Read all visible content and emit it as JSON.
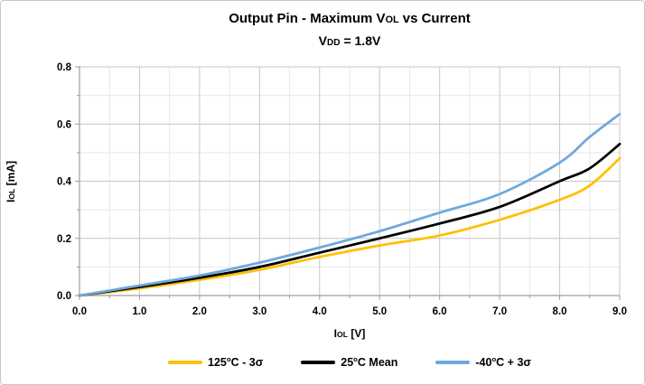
{
  "chart_data": {
    "type": "line",
    "title_text": "Output Pin - Maximum VOL vs Current",
    "title_parts": [
      {
        "t": "Output Pin - Maximum V"
      },
      {
        "t": "OL",
        "style": "small"
      },
      {
        "t": " vs Current"
      }
    ],
    "subtitle_text": "VDD = 1.8V",
    "subtitle_parts": [
      {
        "t": "V"
      },
      {
        "t": "DD",
        "style": "small"
      },
      {
        "t": " = 1.8V"
      }
    ],
    "xlabel_text": "IOL [V]",
    "xlabel_parts": [
      {
        "t": "I"
      },
      {
        "t": "OL",
        "style": "small"
      },
      {
        "t": " [V]"
      }
    ],
    "ylabel_text": "IOL [mA]",
    "ylabel_parts": [
      {
        "t": "I"
      },
      {
        "t": "OL",
        "style": "small"
      },
      {
        "t": " [mA]"
      }
    ],
    "xlim": [
      0,
      9
    ],
    "ylim": [
      0,
      0.8
    ],
    "x_major_ticks": [
      {
        "v": 0,
        "label": "0.0"
      },
      {
        "v": 1,
        "label": "1.0"
      },
      {
        "v": 2,
        "label": "2.0"
      },
      {
        "v": 3,
        "label": "3.0"
      },
      {
        "v": 4,
        "label": "4.0"
      },
      {
        "v": 5,
        "label": "5.0"
      },
      {
        "v": 6,
        "label": "6.0"
      },
      {
        "v": 7,
        "label": "7.0"
      },
      {
        "v": 8,
        "label": "8.0"
      },
      {
        "v": 9,
        "label": "9.0"
      }
    ],
    "y_major_ticks": [
      {
        "v": 0.0,
        "label": "0.0"
      },
      {
        "v": 0.2,
        "label": "0.2"
      },
      {
        "v": 0.4,
        "label": "0.4"
      },
      {
        "v": 0.6,
        "label": "0.6"
      },
      {
        "v": 0.8,
        "label": "0.8"
      }
    ],
    "x_minor_step": 0.5,
    "y_minor_step": 0.1,
    "grid": {
      "major_color": "#c6c6c6",
      "minor_color": "#e8e8e8",
      "axis_color": "#9e9e9e",
      "grid_on": true,
      "legend_position": "bottom"
    },
    "x": [
      0,
      1,
      2,
      3,
      4,
      5,
      6,
      7,
      8,
      8.5,
      9
    ],
    "series": [
      {
        "name": "125°C - 3σ",
        "label_parts": [
          {
            "t": "125"
          },
          {
            "t": "o",
            "style": "sup"
          },
          {
            "t": "C - 3σ"
          }
        ],
        "color": "#FFC000",
        "values": [
          0,
          0.025,
          0.055,
          0.09,
          0.135,
          0.175,
          0.21,
          0.265,
          0.335,
          0.385,
          0.48
        ]
      },
      {
        "name": "25°C Mean",
        "label_parts": [
          {
            "t": "25"
          },
          {
            "t": "o",
            "style": "sup"
          },
          {
            "t": "C Mean"
          }
        ],
        "color": "#000000",
        "values": [
          0,
          0.03,
          0.062,
          0.1,
          0.15,
          0.2,
          0.252,
          0.31,
          0.4,
          0.445,
          0.53
        ]
      },
      {
        "name": "-40°C + 3σ",
        "label_parts": [
          {
            "t": "-40"
          },
          {
            "t": "o",
            "style": "sup"
          },
          {
            "t": "C + 3σ"
          }
        ],
        "color": "#6FA8DC",
        "values": [
          0,
          0.035,
          0.07,
          0.115,
          0.168,
          0.225,
          0.29,
          0.355,
          0.465,
          0.555,
          0.635
        ]
      }
    ]
  }
}
